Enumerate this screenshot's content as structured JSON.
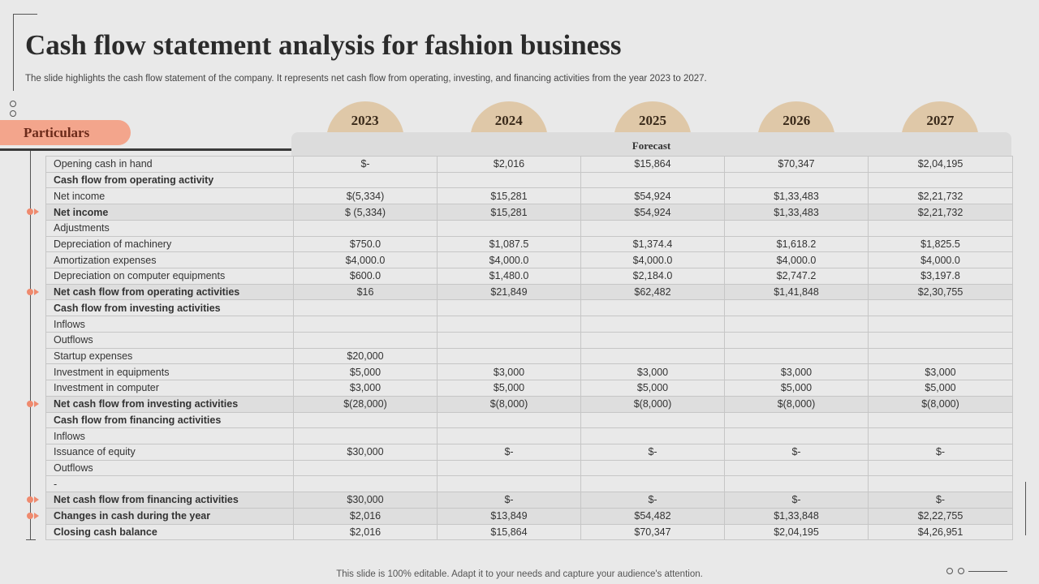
{
  "title": "Cash flow statement analysis for fashion business",
  "subtitle": "The slide highlights the cash flow statement of the company. It represents net cash flow from operating, investing, and financing activities from the year 2023 to 2027.",
  "particulars_label": "Particulars",
  "forecast_label": "Forecast",
  "years": [
    "2023",
    "2024",
    "2025",
    "2026",
    "2027"
  ],
  "colors": {
    "accent": "#f3a58c",
    "year_badge": "#dfc8a8",
    "marker": "#ef8a6e"
  },
  "rows": [
    {
      "label": "Opening cash in hand",
      "values": [
        "$-",
        "$2,016",
        "$15,864",
        "$70,347",
        "$2,04,195"
      ],
      "bold": false,
      "highlight": false,
      "marker": false
    },
    {
      "label": "Cash flow from operating activity",
      "values": [
        "",
        "",
        "",
        "",
        ""
      ],
      "bold": true,
      "highlight": false,
      "marker": false
    },
    {
      "label": "Net income",
      "values": [
        "$(5,334)",
        "$15,281",
        "$54,924",
        "$1,33,483",
        "$2,21,732"
      ],
      "bold": false,
      "highlight": false,
      "marker": false
    },
    {
      "label": "Net income",
      "values": [
        "$ (5,334)",
        "$15,281",
        "$54,924",
        "$1,33,483",
        "$2,21,732"
      ],
      "bold": true,
      "highlight": true,
      "marker": true
    },
    {
      "label": "Adjustments",
      "values": [
        "",
        "",
        "",
        "",
        ""
      ],
      "bold": false,
      "highlight": false,
      "marker": false
    },
    {
      "label": "Depreciation of machinery",
      "values": [
        "$750.0",
        "$1,087.5",
        "$1,374.4",
        "$1,618.2",
        "$1,825.5"
      ],
      "bold": false,
      "highlight": false,
      "marker": false
    },
    {
      "label": "Amortization expenses",
      "values": [
        "$4,000.0",
        "$4,000.0",
        "$4,000.0",
        "$4,000.0",
        "$4,000.0"
      ],
      "bold": false,
      "highlight": false,
      "marker": false
    },
    {
      "label": "Depreciation on computer equipments",
      "values": [
        "$600.0",
        "$1,480.0",
        "$2,184.0",
        "$2,747.2",
        "$3,197.8"
      ],
      "bold": false,
      "highlight": false,
      "marker": false
    },
    {
      "label": "Net cash flow from operating activities",
      "values": [
        "$16",
        "$21,849",
        "$62,482",
        "$1,41,848",
        "$2,30,755"
      ],
      "bold": true,
      "highlight": true,
      "marker": true
    },
    {
      "label": "Cash flow from investing activities",
      "values": [
        "",
        "",
        "",
        "",
        ""
      ],
      "bold": true,
      "highlight": false,
      "marker": false
    },
    {
      "label": "Inflows",
      "values": [
        "",
        "",
        "",
        "",
        ""
      ],
      "bold": false,
      "highlight": false,
      "marker": false
    },
    {
      "label": "Outflows",
      "values": [
        "",
        "",
        "",
        "",
        ""
      ],
      "bold": false,
      "highlight": false,
      "marker": false
    },
    {
      "label": "Startup expenses",
      "values": [
        "$20,000",
        "",
        "",
        "",
        ""
      ],
      "bold": false,
      "highlight": false,
      "marker": false
    },
    {
      "label": "Investment in equipments",
      "values": [
        "$5,000",
        "$3,000",
        "$3,000",
        "$3,000",
        "$3,000"
      ],
      "bold": false,
      "highlight": false,
      "marker": false
    },
    {
      "label": "Investment in computer",
      "values": [
        "$3,000",
        "$5,000",
        "$5,000",
        "$5,000",
        "$5,000"
      ],
      "bold": false,
      "highlight": false,
      "marker": false
    },
    {
      "label": "Net cash flow from investing activities",
      "values": [
        "$(28,000)",
        "$(8,000)",
        "$(8,000)",
        "$(8,000)",
        "$(8,000)"
      ],
      "bold": true,
      "highlight": true,
      "marker": true
    },
    {
      "label": "Cash flow from financing activities",
      "values": [
        "",
        "",
        "",
        "",
        ""
      ],
      "bold": true,
      "highlight": false,
      "marker": false
    },
    {
      "label": "Inflows",
      "values": [
        "",
        "",
        "",
        "",
        ""
      ],
      "bold": false,
      "highlight": false,
      "marker": false
    },
    {
      "label": "Issuance of equity",
      "values": [
        "$30,000",
        "$-",
        "$-",
        "$-",
        "$-"
      ],
      "bold": false,
      "highlight": false,
      "marker": false
    },
    {
      "label": "Outflows",
      "values": [
        "",
        "",
        "",
        "",
        ""
      ],
      "bold": false,
      "highlight": false,
      "marker": false
    },
    {
      "label": "-",
      "values": [
        "",
        "",
        "",
        "",
        ""
      ],
      "bold": false,
      "highlight": false,
      "marker": false
    },
    {
      "label": "Net cash flow from financing activities",
      "values": [
        "$30,000",
        "$-",
        "$-",
        "$-",
        "$-"
      ],
      "bold": true,
      "highlight": true,
      "marker": true
    },
    {
      "label": "Changes in cash during the year",
      "values": [
        "$2,016",
        "$13,849",
        "$54,482",
        "$1,33,848",
        "$2,22,755"
      ],
      "bold": true,
      "highlight": true,
      "marker": true
    },
    {
      "label": "Closing cash balance",
      "values": [
        "$2,016",
        "$15,864",
        "$70,347",
        "$2,04,195",
        "$4,26,951"
      ],
      "bold": true,
      "highlight": false,
      "marker": false
    }
  ],
  "footer": "This slide is 100% editable. Adapt it to your needs and capture your audience's attention."
}
